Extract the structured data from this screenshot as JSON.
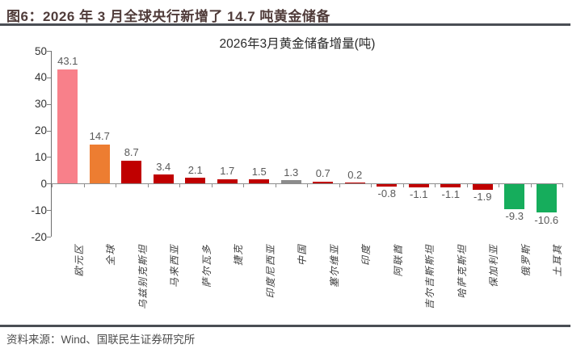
{
  "header": {
    "title": "图6：2026 年 3 月全球央行新增了 14.7 吨黄金储备"
  },
  "chart_data": {
    "type": "bar",
    "title": "2026年3月黄金储备增量(吨)",
    "unit": "吨",
    "categories": [
      "欧元区",
      "全球",
      "乌兹别克斯坦",
      "马来西亚",
      "萨尔瓦多",
      "捷克",
      "印度尼西亚",
      "中国",
      "塞尔维亚",
      "印度",
      "阿联酋",
      "吉尔吉斯斯坦",
      "哈萨克斯坦",
      "保加利亚",
      "俄罗斯",
      "土耳其"
    ],
    "values": [
      43.1,
      14.7,
      8.7,
      3.4,
      2.1,
      1.7,
      1.5,
      1.3,
      0.7,
      0.2,
      -0.8,
      -1.1,
      -1.1,
      -1.9,
      -9.3,
      -10.6
    ],
    "bar_colors": [
      "#F8808A",
      "#ED7D31",
      "#C00000",
      "#C00000",
      "#C00000",
      "#C00000",
      "#C00000",
      "#8C8C8C",
      "#C00000",
      "#C00000",
      "#C00000",
      "#C00000",
      "#C00000",
      "#C00000",
      "#16AD5C",
      "#16AD5C"
    ],
    "yticks": [
      50,
      40,
      30,
      20,
      10,
      0,
      -10,
      -20
    ],
    "ylim": [
      -20,
      50
    ],
    "grid": false,
    "data_labels": true,
    "legend": "none"
  },
  "colors": {
    "pink": "#F8808A",
    "orange": "#ED7D31",
    "red": "#C00000",
    "gray": "#8C8C8C",
    "green": "#16AD5C",
    "axis": "#7F7F7F",
    "value_label": "#595959",
    "header_text": "#503C3A"
  },
  "footer": {
    "source": "资料来源：Wind、国联民生证券研究所"
  }
}
